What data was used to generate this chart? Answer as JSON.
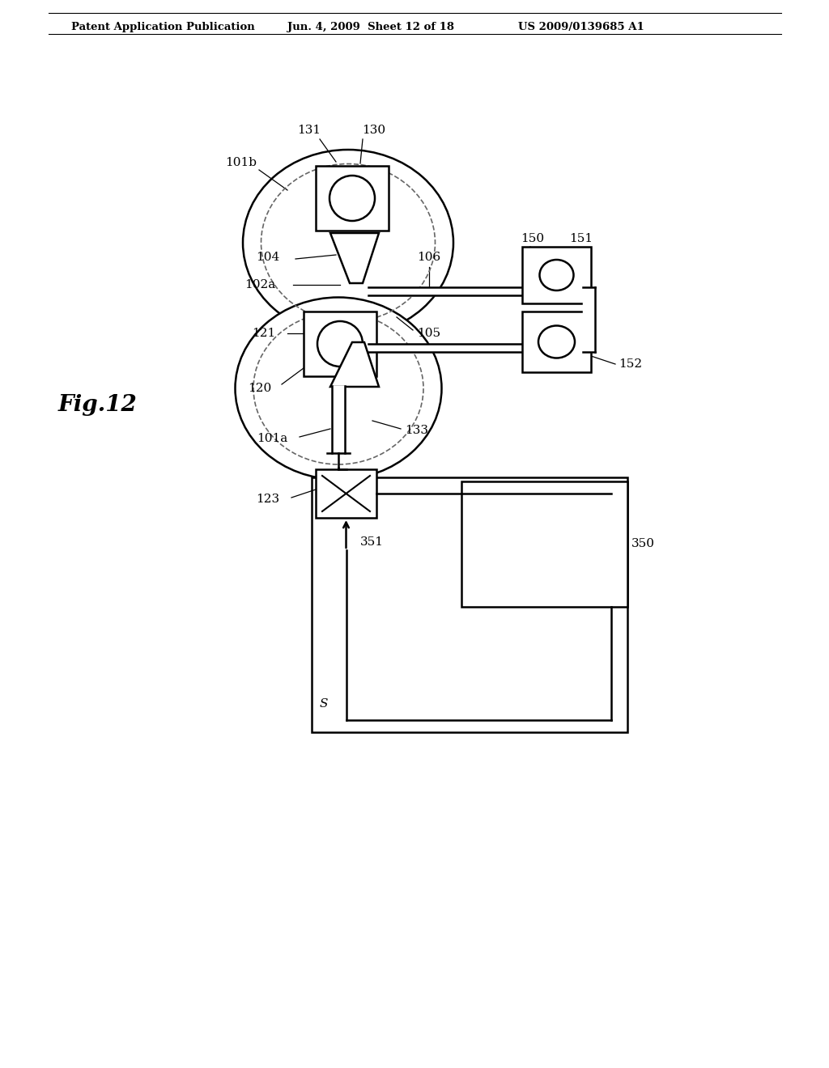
{
  "title_left": "Patent Application Publication",
  "title_mid": "Jun. 4, 2009  Sheet 12 of 18",
  "title_right": "US 2009/0139685 A1",
  "fig_label": "Fig.12",
  "bg_color": "#ffffff",
  "line_color": "#000000",
  "dashed_color": "#666666"
}
